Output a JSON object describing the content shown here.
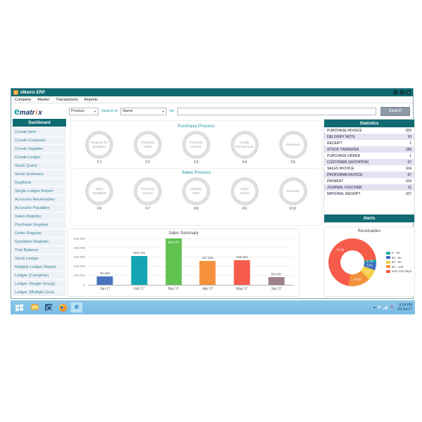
{
  "window": {
    "title": "eMatrix ERP",
    "menus": [
      "Company",
      "Master",
      "Transactions",
      "Reports"
    ],
    "controls": [
      {
        "name": "minimize",
        "glyph": "–"
      },
      {
        "name": "maximize",
        "glyph": "▫"
      },
      {
        "name": "close",
        "glyph": "✕"
      }
    ]
  },
  "toolbar": {
    "logo": {
      "e": "e",
      "matr": "matr",
      "i": "i",
      "x": "x"
    },
    "category_value": "Product",
    "search_in_label": "Search in",
    "field_value": "Name",
    "for_label": "for",
    "search_value": "",
    "search_button": "Search"
  },
  "sidebar": {
    "header": "Dashboard",
    "items": [
      "Create Item",
      "Create Customer",
      "Create Supplier",
      "Create Ledger",
      "Stock Query",
      "Stock Summary",
      "DayBook",
      "Single Ledger Report",
      "Accounts Receivables",
      "Accounts Payables",
      "Sales Register",
      "Purchase Register",
      "Order Register",
      "Quotation Register",
      "Trial Balance",
      "Stock Ledger",
      "Multiple Ledger Report",
      "Ledger (Complete)",
      "Ledger (Single Group)",
      "Ledger (Multiple Grou"
    ]
  },
  "purchase_process": {
    "title": "Purchase Process",
    "steps": [
      {
        "label": "Request for Quotation",
        "fkey": "F1"
      },
      {
        "label": "Purchase Order",
        "fkey": "F2"
      },
      {
        "label": "Purchase Invoice",
        "fkey": "F3"
      },
      {
        "label": "Goods Receipt Note",
        "fkey": "F4"
      },
      {
        "label": "Payments",
        "fkey": "F5"
      }
    ]
  },
  "sales_process": {
    "title": "Sales Process",
    "steps": [
      {
        "label": "Sales Quotation",
        "fkey": "F6"
      },
      {
        "label": "Proforma Invoice",
        "fkey": "F7"
      },
      {
        "label": "Delivery Note",
        "fkey": "F8"
      },
      {
        "label": "Sales Invoice",
        "fkey": "F9"
      },
      {
        "label": "Receipts",
        "fkey": "F10"
      }
    ]
  },
  "statistics": {
    "header": "Statistics",
    "rows": [
      {
        "label": "PURCHASE INVOICE",
        "value": "200"
      },
      {
        "label": "DELIVERY NOTE",
        "value": "10"
      },
      {
        "label": "RECEIPT",
        "value": "1"
      },
      {
        "label": "STOCK TRANSFER",
        "value": "189"
      },
      {
        "label": "PURCHASE ORDER",
        "value": "1"
      },
      {
        "label": "CUSTOMER QUOTATION",
        "value": "57"
      },
      {
        "label": "SALES INVOICE",
        "value": "104"
      },
      {
        "label": "PROFORMA INVOICE",
        "value": "67"
      },
      {
        "label": "PAYMENT",
        "value": "104"
      },
      {
        "label": "JOURNAL VOUCHER",
        "value": "11"
      },
      {
        "label": "MATERIAL RECEIPT",
        "value": "107"
      }
    ]
  },
  "alerts": {
    "header": "Alerts"
  },
  "chart_data": [
    {
      "type": "bar",
      "title": "Sales Summary",
      "categories": [
        "Jan 17",
        "Feb 17",
        "Mar 17",
        "Apr 17",
        "May 17",
        "Jun 17"
      ],
      "values": [
        90484,
        309704,
        497278,
        257500,
        268552,
        84440
      ],
      "value_labels": [
        "90,484",
        "309,704",
        "497,278",
        "257,500",
        "268,552",
        "84,440"
      ],
      "bar_colors": [
        "#4a73be",
        "#14a5b2",
        "#61c250",
        "#f6923e",
        "#f75b4a",
        "#9d8186"
      ],
      "xlabel": "",
      "ylabel": "",
      "ylim": [
        0,
        500000
      ],
      "ytick_labels": [
        "500,000",
        "400,000",
        "300,000",
        "200,000",
        "100,000",
        "0"
      ],
      "grid": true,
      "legend_position": "none"
    },
    {
      "type": "pie",
      "title": "Receivables",
      "donut": true,
      "labels": [
        "0 - 30",
        "30 - 60",
        "60 - 90",
        "90 - 120",
        "over 120 days"
      ],
      "values": [
        1.76,
        5.51,
        7.31,
        14.97,
        70.46
      ],
      "value_labels": [
        "1.76",
        "5.51",
        "7.31",
        "14.97",
        "70.46"
      ],
      "colors": [
        "#1aa7a0",
        "#3f6fc0",
        "#f2d149",
        "#f2923c",
        "#f75b4a"
      ],
      "start_angle_deg": 83,
      "legend_position": "right"
    }
  ],
  "taskbar": {
    "time": "8:24 PM",
    "date": "09-Jul-17",
    "app_icons": [
      "start-icon",
      "file-explorer-icon",
      "app-icon",
      "firefox-icon",
      "internet-explorer-icon"
    ],
    "tray_icons": [
      "tray-expand-icon",
      "flag-icon",
      "network-icon",
      "volume-alert-icon"
    ]
  }
}
